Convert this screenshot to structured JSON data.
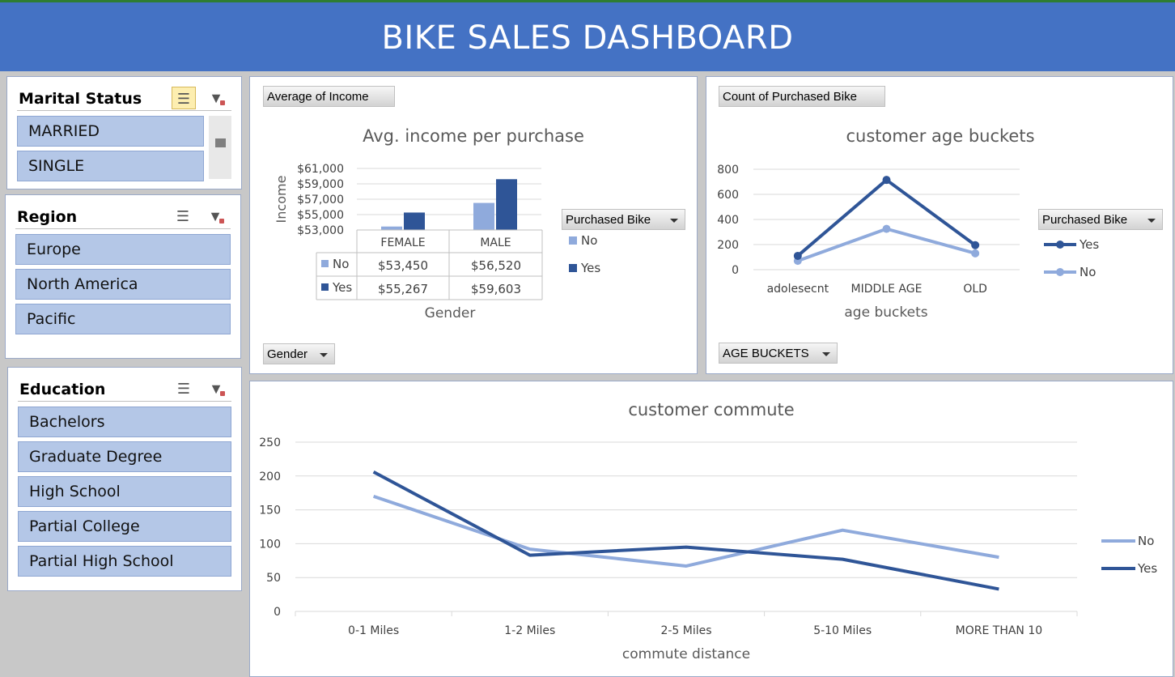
{
  "title": "BIKE SALES DASHBOARD",
  "slicers": {
    "marital": {
      "title": "Marital Status",
      "items": [
        "MARRIED",
        "SINGLE"
      ]
    },
    "region": {
      "title": "Region",
      "items": [
        "Europe",
        "North America",
        "Pacific"
      ]
    },
    "education": {
      "title": "Education",
      "items": [
        "Bachelors",
        "Graduate Degree",
        "High School",
        "Partial College",
        "Partial High School"
      ]
    }
  },
  "income_chart": {
    "field_value": "Average of Income",
    "field_axis": "Gender",
    "legend_field": "Purchased Bike",
    "ylabel": "Income",
    "xlabel": "Gender",
    "legend": [
      "No",
      "Yes"
    ],
    "table": {
      "no_label": "No",
      "yes_label": "Yes",
      "female_no": "$53,450",
      "male_no": "$56,520",
      "female_yes": "$55,267",
      "male_yes": "$59,603"
    }
  },
  "age_chart": {
    "field_value": "Count of Purchased Bike",
    "field_axis": "AGE BUCKETS",
    "legend_field": "Purchased Bike",
    "legend": [
      "Yes",
      "No"
    ]
  },
  "chart_data": [
    {
      "type": "bar",
      "title": "Avg. income per purchase",
      "xlabel": "Gender",
      "ylabel": "Income",
      "categories": [
        "FEMALE",
        "MALE"
      ],
      "series": [
        {
          "name": "No",
          "values": [
            53450,
            56520
          ],
          "color": "#8faadc"
        },
        {
          "name": "Yes",
          "values": [
            55267,
            59603
          ],
          "color": "#2f5597"
        }
      ],
      "ylim": [
        53000,
        61000
      ],
      "yticks": [
        53000,
        55000,
        57000,
        59000,
        61000
      ],
      "ytick_labels": [
        "$53,000",
        "$55,000",
        "$57,000",
        "$59,000",
        "$61,000"
      ],
      "grid": true,
      "legend_placement": "right"
    },
    {
      "type": "line",
      "title": "customer age  buckets",
      "xlabel": "age buckets",
      "ylabel": "",
      "categories": [
        "adolesecnt",
        "MIDDLE AGE",
        "OLD"
      ],
      "series": [
        {
          "name": "Yes",
          "values": [
            110,
            715,
            195
          ],
          "color": "#2f5597"
        },
        {
          "name": "No",
          "values": [
            70,
            325,
            130
          ],
          "color": "#8faadc"
        }
      ],
      "ylim": [
        0,
        800
      ],
      "yticks": [
        0,
        200,
        400,
        600,
        800
      ],
      "grid": true,
      "legend_placement": "right"
    },
    {
      "type": "line",
      "title": "customer commute",
      "xlabel": "commute distance",
      "ylabel": "",
      "categories": [
        "0-1 Miles",
        "1-2 Miles",
        "2-5 Miles",
        "5-10 Miles",
        "MORE THAN 10"
      ],
      "series": [
        {
          "name": "No",
          "values": [
            170,
            92,
            67,
            120,
            80
          ],
          "color": "#8faadc"
        },
        {
          "name": "Yes",
          "values": [
            206,
            83,
            95,
            77,
            33
          ],
          "color": "#2f5597"
        }
      ],
      "ylim": [
        0,
        250
      ],
      "yticks": [
        0,
        50,
        100,
        150,
        200,
        250
      ],
      "grid": true,
      "legend_placement": "right"
    }
  ]
}
